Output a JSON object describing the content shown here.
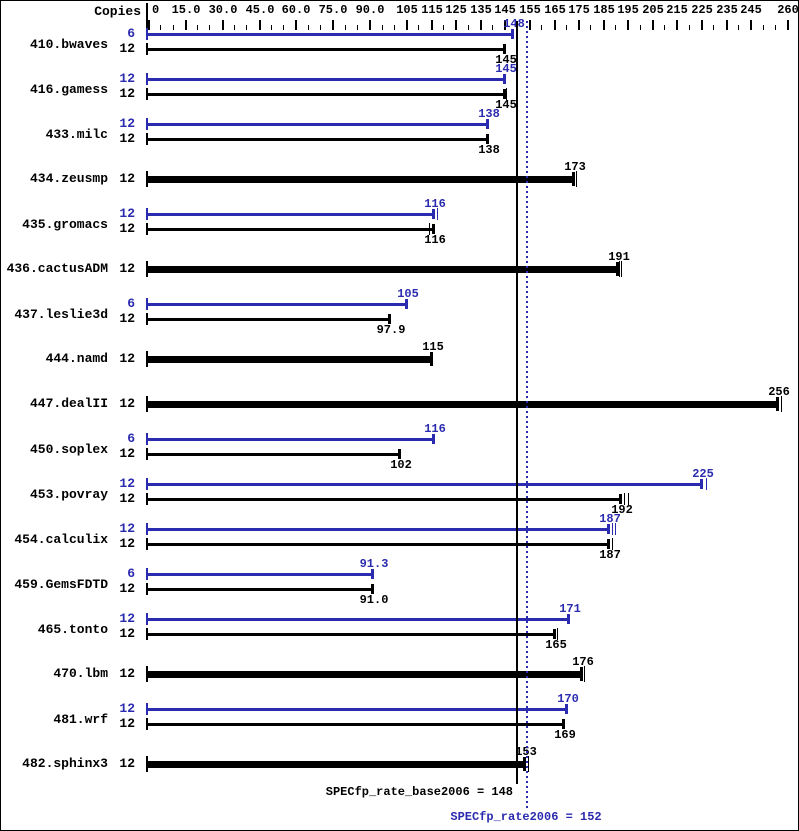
{
  "header": {
    "copies_label": "Copies"
  },
  "colors": {
    "peak_blue": "#2b2baf",
    "base_black": "#000000",
    "background": "#ffffff"
  },
  "footer": {
    "base_text": "SPECfp_rate_base2006 = 148",
    "peak_text": "SPECfp_rate2006 = 152"
  },
  "chart_data": {
    "type": "bar",
    "orientation": "horizontal",
    "title": "",
    "xlabel": "",
    "ylabel": "Copies",
    "xlim": [
      0,
      260
    ],
    "legend_position": "none",
    "grid": false,
    "axis_ticks": [
      {
        "value": 0,
        "label": "0"
      },
      {
        "value": 15,
        "label": "15.0"
      },
      {
        "value": 30,
        "label": "30.0"
      },
      {
        "value": 45,
        "label": "45.0"
      },
      {
        "value": 60,
        "label": "60.0"
      },
      {
        "value": 75,
        "label": "75.0"
      },
      {
        "value": 90,
        "label": "90.0"
      },
      {
        "value": 105,
        "label": "105"
      },
      {
        "value": 115,
        "label": "115"
      },
      {
        "value": 125,
        "label": "125"
      },
      {
        "value": 135,
        "label": "135"
      },
      {
        "value": 145,
        "label": "145"
      },
      {
        "value": 155,
        "label": "155"
      },
      {
        "value": 165,
        "label": "165"
      },
      {
        "value": 175,
        "label": "175"
      },
      {
        "value": 185,
        "label": "185"
      },
      {
        "value": 195,
        "label": "195"
      },
      {
        "value": 205,
        "label": "205"
      },
      {
        "value": 215,
        "label": "215"
      },
      {
        "value": 225,
        "label": "225"
      },
      {
        "value": 235,
        "label": "235"
      },
      {
        "value": 245,
        "label": "245"
      },
      {
        "value": 260,
        "label": "260"
      }
    ],
    "benchmarks": [
      {
        "name": "410.bwaves",
        "rows": [
          {
            "kind": "peak",
            "copies": "6",
            "value": 148,
            "label": "148",
            "marks": [
              0
            ]
          },
          {
            "kind": "base",
            "copies": "12",
            "value": 145,
            "label": "145",
            "marks": [
              0
            ]
          }
        ]
      },
      {
        "name": "416.gamess",
        "rows": [
          {
            "kind": "peak",
            "copies": "12",
            "value": 145,
            "label": "145",
            "marks": [
              0
            ]
          },
          {
            "kind": "base",
            "copies": "12",
            "value": 145,
            "label": "145",
            "marks": [
              0,
              2
            ]
          }
        ]
      },
      {
        "name": "433.milc",
        "rows": [
          {
            "kind": "peak",
            "copies": "12",
            "value": 138,
            "label": "138",
            "marks": [
              0
            ]
          },
          {
            "kind": "base",
            "copies": "12",
            "value": 138,
            "label": "138",
            "marks": [
              0
            ]
          }
        ]
      },
      {
        "name": "434.zeusmp",
        "rows": [
          {
            "kind": "both",
            "copies": "12",
            "value": 173,
            "label": "173",
            "marks": [
              0,
              3
            ]
          }
        ]
      },
      {
        "name": "435.gromacs",
        "rows": [
          {
            "kind": "peak",
            "copies": "12",
            "value": 116,
            "label": "116",
            "marks": [
              0,
              4
            ]
          },
          {
            "kind": "base",
            "copies": "12",
            "value": 116,
            "label": "116",
            "marks": [
              -4,
              0
            ]
          }
        ]
      },
      {
        "name": "436.cactusADM",
        "rows": [
          {
            "kind": "both",
            "copies": "12",
            "value": 191,
            "label": "191",
            "marks": [
              0,
              2,
              4
            ]
          }
        ]
      },
      {
        "name": "437.leslie3d",
        "rows": [
          {
            "kind": "peak",
            "copies": "6",
            "value": 105,
            "label": "105",
            "marks": [
              0
            ]
          },
          {
            "kind": "base",
            "copies": "12",
            "value": 97.9,
            "label": "97.9",
            "marks": [
              0
            ]
          }
        ]
      },
      {
        "name": "444.namd",
        "rows": [
          {
            "kind": "both",
            "copies": "12",
            "value": 115,
            "label": "115",
            "marks": [
              0
            ]
          }
        ]
      },
      {
        "name": "447.dealII",
        "rows": [
          {
            "kind": "both",
            "copies": "12",
            "value": 256,
            "label": "256",
            "marks": [
              0,
              4
            ]
          }
        ]
      },
      {
        "name": "450.soplex",
        "rows": [
          {
            "kind": "peak",
            "copies": "6",
            "value": 116,
            "label": "116",
            "marks": [
              0
            ]
          },
          {
            "kind": "base",
            "copies": "12",
            "value": 102,
            "label": "102",
            "marks": [
              0
            ]
          }
        ]
      },
      {
        "name": "453.povray",
        "rows": [
          {
            "kind": "peak",
            "copies": "12",
            "value": 225,
            "label": "225",
            "marks": [
              0,
              5
            ]
          },
          {
            "kind": "base",
            "copies": "12",
            "value": 192,
            "label": "192",
            "marks": [
              0,
              4,
              8
            ]
          }
        ]
      },
      {
        "name": "454.calculix",
        "rows": [
          {
            "kind": "peak",
            "copies": "12",
            "value": 187,
            "label": "187",
            "marks": [
              0,
              4,
              7
            ]
          },
          {
            "kind": "base",
            "copies": "12",
            "value": 187,
            "label": "187",
            "marks": [
              0,
              4
            ]
          }
        ]
      },
      {
        "name": "459.GemsFDTD",
        "rows": [
          {
            "kind": "peak",
            "copies": "6",
            "value": 91.3,
            "label": "91.3",
            "marks": [
              0
            ]
          },
          {
            "kind": "base",
            "copies": "12",
            "value": 91.0,
            "label": "91.0",
            "marks": [
              0
            ]
          }
        ]
      },
      {
        "name": "465.tonto",
        "rows": [
          {
            "kind": "peak",
            "copies": "12",
            "value": 171,
            "label": "171",
            "marks": [
              0
            ]
          },
          {
            "kind": "base",
            "copies": "12",
            "value": 165,
            "label": "165",
            "marks": [
              0,
              3
            ]
          }
        ]
      },
      {
        "name": "470.lbm",
        "rows": [
          {
            "kind": "both",
            "copies": "12",
            "value": 176,
            "label": "176",
            "marks": [
              0,
              3
            ]
          }
        ]
      },
      {
        "name": "481.wrf",
        "rows": [
          {
            "kind": "peak",
            "copies": "12",
            "value": 170,
            "label": "170",
            "marks": [
              0
            ]
          },
          {
            "kind": "base",
            "copies": "12",
            "value": 169,
            "label": "169",
            "marks": [
              0
            ]
          }
        ]
      },
      {
        "name": "482.sphinx3",
        "rows": [
          {
            "kind": "both",
            "copies": "12",
            "value": 153,
            "label": "153",
            "marks": [
              0,
              4
            ]
          }
        ]
      }
    ],
    "reference_lines": [
      {
        "label": "SPECfp_rate_base2006 = 148",
        "value": 148,
        "style": "solid",
        "color": "black"
      },
      {
        "label": "SPECfp_rate2006 = 152",
        "value": 152,
        "style": "dotted",
        "color": "blue"
      }
    ]
  }
}
